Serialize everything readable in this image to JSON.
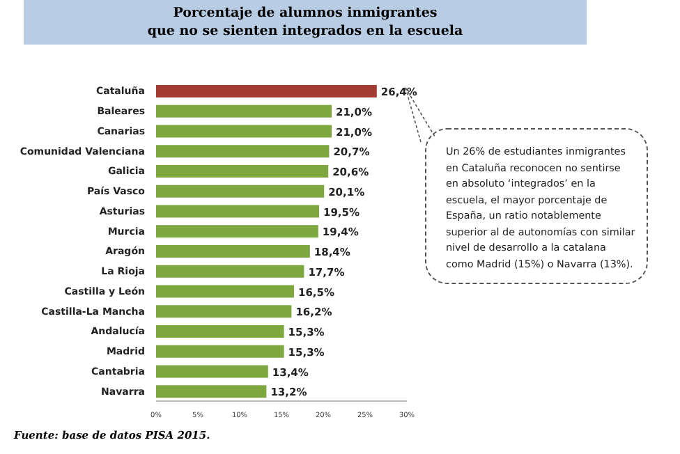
{
  "chart_data": {
    "type": "bar",
    "orientation": "horizontal",
    "title": "Porcentaje de alumnos inmigrantes\nque no se sienten integrados en la escuela",
    "categories": [
      "Cataluña",
      "Baleares",
      "Canarias",
      "Comunidad Valenciana",
      "Galicia",
      "País Vasco",
      "Asturias",
      "Murcia",
      "Aragón",
      "La Rioja",
      "Castilla y León",
      "Castilla-La Mancha",
      "Andalucía",
      "Madrid",
      "Cantabria",
      "Navarra"
    ],
    "values": [
      26.4,
      21.0,
      21.0,
      20.7,
      20.6,
      20.1,
      19.5,
      19.4,
      18.4,
      17.7,
      16.5,
      16.2,
      15.3,
      15.3,
      13.4,
      13.2
    ],
    "value_labels": [
      "26,4%",
      "21,0%",
      "21,0%",
      "20,7%",
      "20,6%",
      "20,1%",
      "19,5%",
      "19,4%",
      "18,4%",
      "17,7%",
      "16,5%",
      "16,2%",
      "15,3%",
      "15,3%",
      "13,4%",
      "13,2%"
    ],
    "colors": [
      "#a23b32",
      "#7ea83f",
      "#7ea83f",
      "#7ea83f",
      "#7ea83f",
      "#7ea83f",
      "#7ea83f",
      "#7ea83f",
      "#7ea83f",
      "#7ea83f",
      "#7ea83f",
      "#7ea83f",
      "#7ea83f",
      "#7ea83f",
      "#7ea83f",
      "#7ea83f"
    ],
    "xlim": [
      0,
      30
    ],
    "xticks": [
      {
        "value": 0,
        "label": "0%"
      },
      {
        "value": 5,
        "label": "5%"
      },
      {
        "value": 10,
        "label": "10%"
      },
      {
        "value": 15,
        "label": "15%"
      },
      {
        "value": 20,
        "label": "20%"
      },
      {
        "value": 25,
        "label": "25%"
      },
      {
        "value": 30,
        "label": "30%"
      }
    ],
    "grid": false,
    "annotations": [
      "Un 26% de estudiantes inmigrantes en Cataluña reconocen no sentirse en absoluto ‘integrados’ en la escuela, el mayor porcentaje de España, un ratio notablemente superior al de autonomías con similar nivel de desarrollo a la catalana como Madrid (15%) o Navarra (13%).",
      "Fuente: base de datos PISA 2015."
    ]
  }
}
